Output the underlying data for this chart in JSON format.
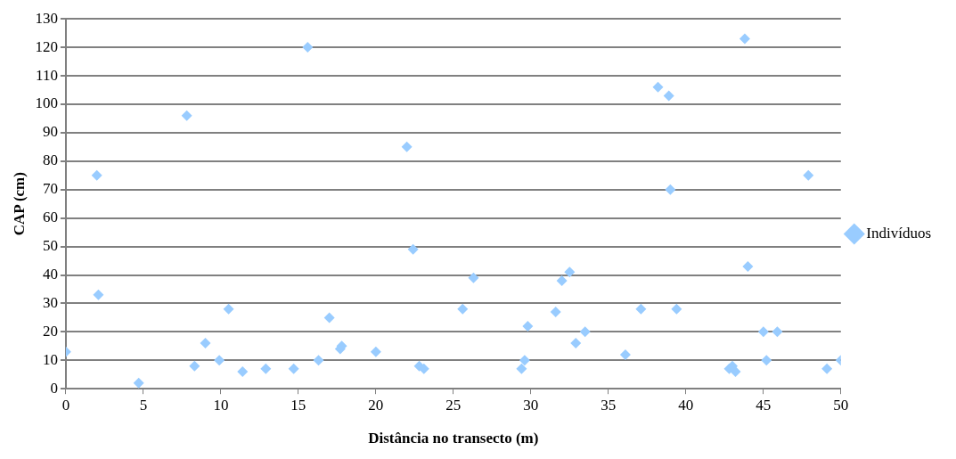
{
  "chart_data": {
    "type": "scatter",
    "xlabel": "Distância no transecto (m)",
    "ylabel": "CAP (cm)",
    "xlim": [
      0,
      50
    ],
    "xticks": [
      0,
      5,
      10,
      15,
      20,
      25,
      30,
      35,
      40,
      45,
      50
    ],
    "ylim": [
      0,
      130
    ],
    "yticks": [
      0,
      10,
      20,
      30,
      40,
      50,
      60,
      70,
      80,
      90,
      100,
      110,
      120,
      130
    ],
    "grid": "y",
    "legend": "right",
    "marker": "diamond",
    "series": [
      {
        "name": "Indivíduos",
        "color": "#99ccff",
        "x": [
          0,
          2.0,
          2.1,
          4.7,
          7.8,
          8.3,
          9.0,
          9.9,
          10.5,
          11.4,
          12.9,
          14.7,
          15.6,
          16.3,
          17.0,
          17.7,
          17.8,
          20.0,
          22.0,
          22.4,
          22.8,
          23.1,
          25.6,
          26.3,
          29.4,
          29.6,
          29.8,
          31.6,
          32.0,
          32.5,
          32.9,
          33.5,
          36.1,
          37.1,
          38.2,
          38.9,
          39.0,
          39.4,
          42.8,
          43.0,
          43.2,
          43.8,
          44.0,
          45.0,
          45.2,
          45.9,
          47.9,
          49.1,
          50
        ],
        "values": [
          13,
          75,
          33,
          2,
          96,
          8,
          16,
          10,
          28,
          6,
          7,
          7,
          120,
          10,
          25,
          14,
          15,
          13,
          85,
          49,
          8,
          7,
          28,
          39,
          7,
          10,
          22,
          27,
          38,
          41,
          16,
          20,
          12,
          28,
          106,
          103,
          70,
          28,
          7,
          8,
          6,
          123,
          43,
          20,
          10,
          20,
          75,
          7,
          10
        ]
      }
    ]
  }
}
